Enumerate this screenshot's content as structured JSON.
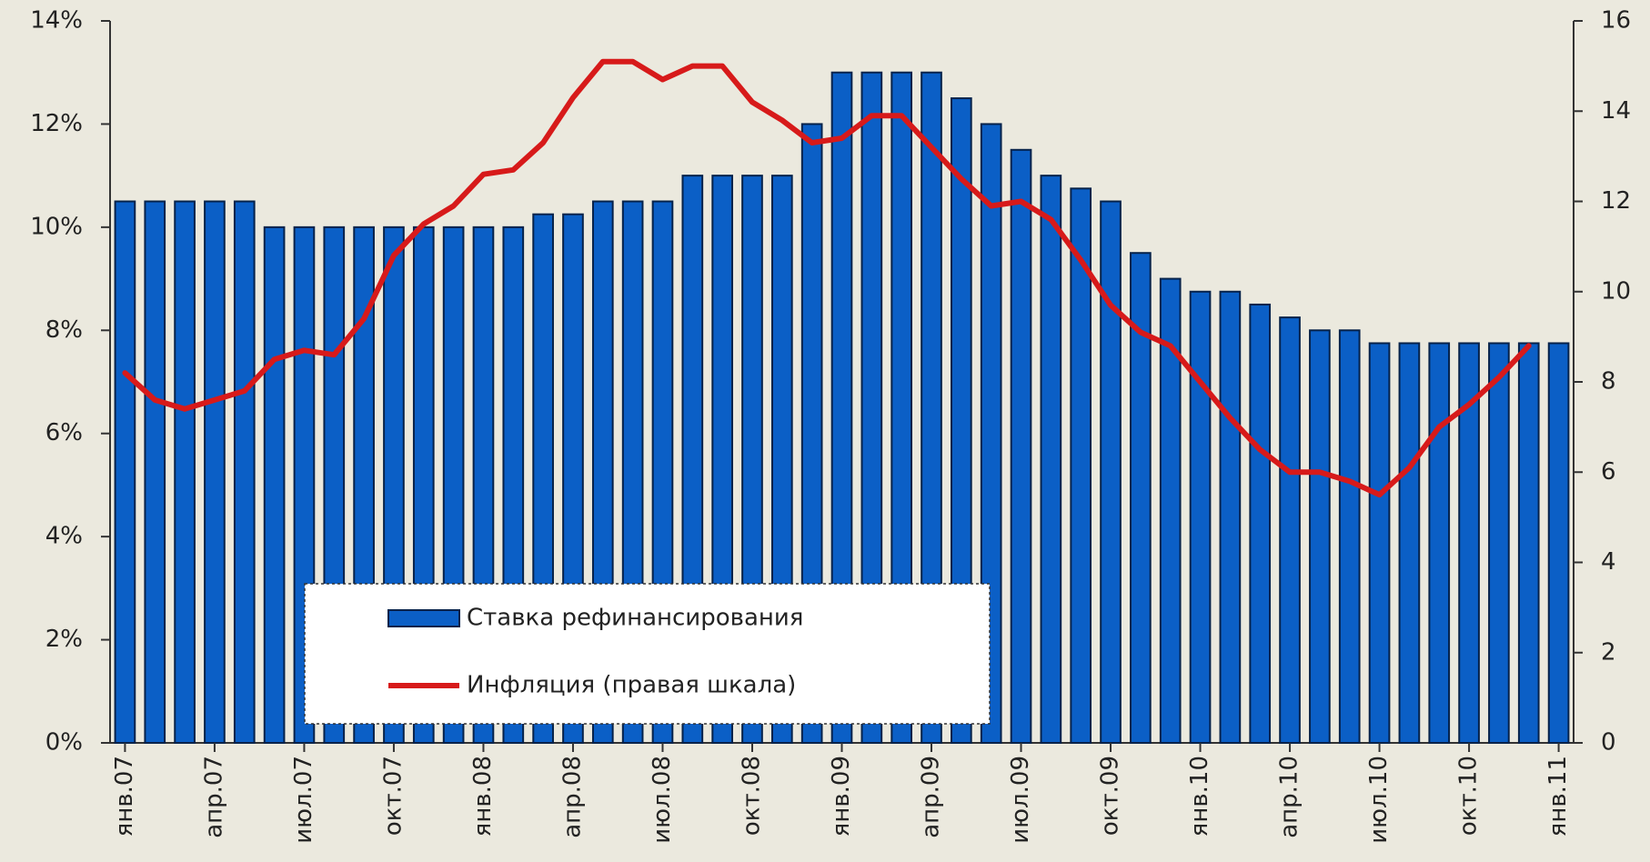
{
  "chart_data": {
    "type": "bar_line",
    "categories": [
      "янв.07",
      null,
      null,
      "апр.07",
      null,
      null,
      "июл.07",
      null,
      null,
      "окт.07",
      null,
      null,
      "янв.08",
      null,
      null,
      "апр.08",
      null,
      null,
      "июл.08",
      null,
      null,
      "окт.08",
      null,
      null,
      "янв.09",
      null,
      null,
      "апр.09",
      null,
      null,
      "июл.09",
      null,
      null,
      "окт.09",
      null,
      null,
      "янв.10",
      null,
      null,
      "апр.10",
      null,
      null,
      "июл.10",
      null,
      null,
      "окт.10",
      null,
      null,
      "янв.11"
    ],
    "series": [
      {
        "name": "Ставка рефинансирования",
        "color": "#0b5fc6",
        "type": "bar",
        "values": [
          10.5,
          10.5,
          10.5,
          10.5,
          10.5,
          10,
          10,
          10,
          10,
          10,
          10,
          10,
          10,
          10,
          10.25,
          10.25,
          10.5,
          10.5,
          10.5,
          11,
          11,
          11,
          11,
          12,
          13,
          13,
          13,
          13,
          12.5,
          12,
          11.5,
          11,
          10.75,
          10.5,
          9.5,
          9,
          8.75,
          8.75,
          8.5,
          8.25,
          8,
          8,
          7.75,
          7.75,
          7.75,
          7.75,
          7.75,
          7.75,
          7.75
        ]
      },
      {
        "name": "Инфляция (правая шкала)",
        "color": "#d71a1a",
        "type": "line",
        "axis": "y2",
        "values": [
          8.2,
          7.6,
          7.4,
          7.6,
          7.8,
          8.5,
          8.7,
          8.6,
          9.4,
          10.8,
          11.5,
          11.9,
          12.6,
          12.7,
          13.3,
          14.3,
          15.1,
          15.1,
          14.7,
          15.0,
          15.0,
          14.2,
          13.8,
          13.3,
          13.4,
          13.9,
          13.9,
          13.2,
          12.5,
          11.9,
          12.0,
          11.6,
          10.7,
          9.7,
          9.1,
          8.8,
          8.0,
          7.2,
          6.5,
          6.0,
          6.0,
          5.8,
          5.5,
          6.1,
          7.0,
          7.5,
          8.1,
          8.8,
          null
        ]
      }
    ],
    "ylim": [
      0,
      14
    ],
    "yticks": [
      {
        "value": 0,
        "label": "0%"
      },
      {
        "value": 2,
        "label": "2%"
      },
      {
        "value": 4,
        "label": "4%"
      },
      {
        "value": 6,
        "label": "6%"
      },
      {
        "value": 8,
        "label": "8%"
      },
      {
        "value": 10,
        "label": "10%"
      },
      {
        "value": 12,
        "label": "12%"
      },
      {
        "value": 14,
        "label": "14%"
      }
    ],
    "y2lim": [
      0,
      16
    ],
    "y2ticks": [
      0,
      2,
      4,
      6,
      8,
      10,
      12,
      14,
      16
    ]
  }
}
